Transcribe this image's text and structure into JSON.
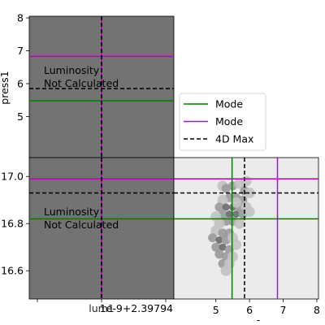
{
  "colors": {
    "mode1": "#008000",
    "mode2": "#c000c0",
    "max": "#000000",
    "gray_panel": "#737373",
    "light_panel": "#ebebeb"
  },
  "legend": {
    "entries": [
      {
        "label": "Mode",
        "color": "#008000",
        "style": "solid"
      },
      {
        "label": "Mode",
        "color": "#c000c0",
        "style": "solid"
      },
      {
        "label": "4D Max",
        "color": "#000000",
        "style": "dashed"
      }
    ]
  },
  "chart_data": [
    {
      "type": "heatmap",
      "panel": "top-left",
      "ylabel": "press1",
      "yticks": [
        5,
        6,
        7,
        8
      ],
      "ylim": [
        3.75,
        8.05
      ],
      "annotation": [
        "Luminosity",
        "Not Calculated"
      ],
      "hlines": {
        "mode_green": 5.48,
        "mode_magenta": 6.83,
        "max_dashed": 5.85
      },
      "vlines": {
        "x_marker": 0
      }
    },
    {
      "type": "heatmap",
      "panel": "bottom-left",
      "xlabel": "lum1",
      "offset_text": "1e-9+2.39794",
      "yticks": [
        "16.6",
        "16.8",
        "17.0"
      ],
      "ylim": [
        16.48,
        17.08
      ],
      "annotation": [
        "Luminosity",
        "Not Calculated"
      ],
      "hlines": {
        "mode_green": 16.82,
        "mode_magenta": 16.99,
        "max_dashed": 16.93
      }
    },
    {
      "type": "scatter",
      "panel": "bottom-right",
      "xlabel": "-",
      "xticks": [
        5,
        6,
        7,
        8
      ],
      "xlim": [
        3.75,
        8.05
      ],
      "ylim": [
        16.48,
        17.08
      ],
      "vlines": {
        "mode_green": 5.48,
        "mode_magenta": 6.83,
        "max_dashed": 5.85
      },
      "hlines": {
        "mode_green": 16.82,
        "mode_magenta": 16.99,
        "max_dashed": 16.93
      },
      "density_points": [
        [
          5.2,
          16.96,
          1
        ],
        [
          5.3,
          16.95,
          2
        ],
        [
          5.5,
          16.96,
          2
        ],
        [
          5.7,
          16.97,
          1
        ],
        [
          5.9,
          16.98,
          1
        ],
        [
          5.85,
          16.94,
          2
        ],
        [
          6.0,
          16.93,
          1
        ],
        [
          5.8,
          16.9,
          2
        ],
        [
          5.6,
          16.91,
          2
        ],
        [
          5.4,
          16.91,
          2
        ],
        [
          5.2,
          16.9,
          1
        ],
        [
          5.1,
          16.87,
          2
        ],
        [
          5.3,
          16.87,
          3
        ],
        [
          5.5,
          16.87,
          3
        ],
        [
          5.7,
          16.87,
          2
        ],
        [
          5.9,
          16.87,
          1
        ],
        [
          5.2,
          16.84,
          2
        ],
        [
          5.4,
          16.84,
          3
        ],
        [
          5.6,
          16.84,
          3
        ],
        [
          5.8,
          16.84,
          2
        ],
        [
          6.0,
          16.85,
          1
        ],
        [
          5.3,
          16.81,
          2
        ],
        [
          5.5,
          16.81,
          2
        ],
        [
          5.1,
          16.8,
          1
        ],
        [
          5.0,
          16.77,
          1
        ],
        [
          5.2,
          16.76,
          2
        ],
        [
          5.4,
          16.76,
          2
        ],
        [
          4.9,
          16.74,
          2
        ],
        [
          5.1,
          16.73,
          3
        ],
        [
          5.3,
          16.73,
          2
        ],
        [
          5.5,
          16.74,
          1
        ],
        [
          5.0,
          16.7,
          2
        ],
        [
          5.2,
          16.7,
          3
        ],
        [
          5.4,
          16.69,
          2
        ],
        [
          5.6,
          16.71,
          1
        ],
        [
          5.1,
          16.67,
          2
        ],
        [
          5.3,
          16.66,
          2
        ],
        [
          5.5,
          16.66,
          1
        ],
        [
          5.2,
          16.63,
          2
        ],
        [
          5.4,
          16.63,
          1
        ],
        [
          5.3,
          16.6,
          1
        ],
        [
          5.6,
          16.89,
          1
        ],
        [
          5.7,
          16.8,
          1
        ],
        [
          5.0,
          16.83,
          1
        ]
      ]
    }
  ]
}
